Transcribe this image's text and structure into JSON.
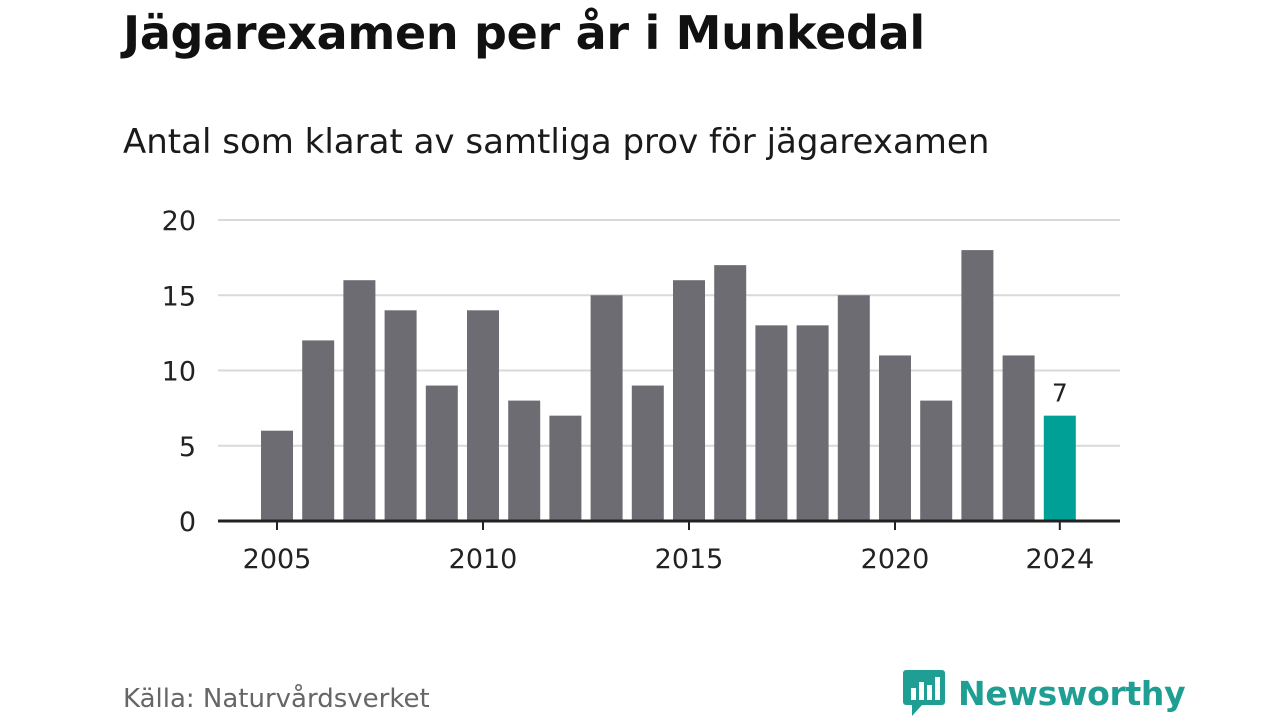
{
  "title": "Jägarexamen per år i Munkedal",
  "subtitle": "Antal som klarat av samtliga prov för jägarexamen",
  "source": "Källa: Naturvårdsverket",
  "brand": {
    "name": "Newsworthy",
    "color": "#1f9e93",
    "icon": "newsworthy-logo-icon"
  },
  "colors": {
    "bar": "#6d6c73",
    "highlight": "#00a096",
    "grid": "#d9d9d9",
    "axis": "#222222"
  },
  "chart_data": {
    "type": "bar",
    "x": [
      2005,
      2006,
      2007,
      2008,
      2009,
      2010,
      2011,
      2012,
      2013,
      2014,
      2015,
      2016,
      2017,
      2018,
      2019,
      2020,
      2021,
      2022,
      2023,
      2024
    ],
    "values": [
      6,
      12,
      16,
      14,
      9,
      14,
      8,
      7,
      15,
      9,
      16,
      17,
      13,
      13,
      15,
      11,
      8,
      18,
      11,
      7
    ],
    "highlight": {
      "x": 2024,
      "label": "7"
    },
    "yticks": [
      0,
      5,
      10,
      15,
      20
    ],
    "xticks": [
      2005,
      2010,
      2015,
      2020,
      2024
    ],
    "ylim": [
      0,
      20
    ],
    "grid": true,
    "legend": "none"
  }
}
